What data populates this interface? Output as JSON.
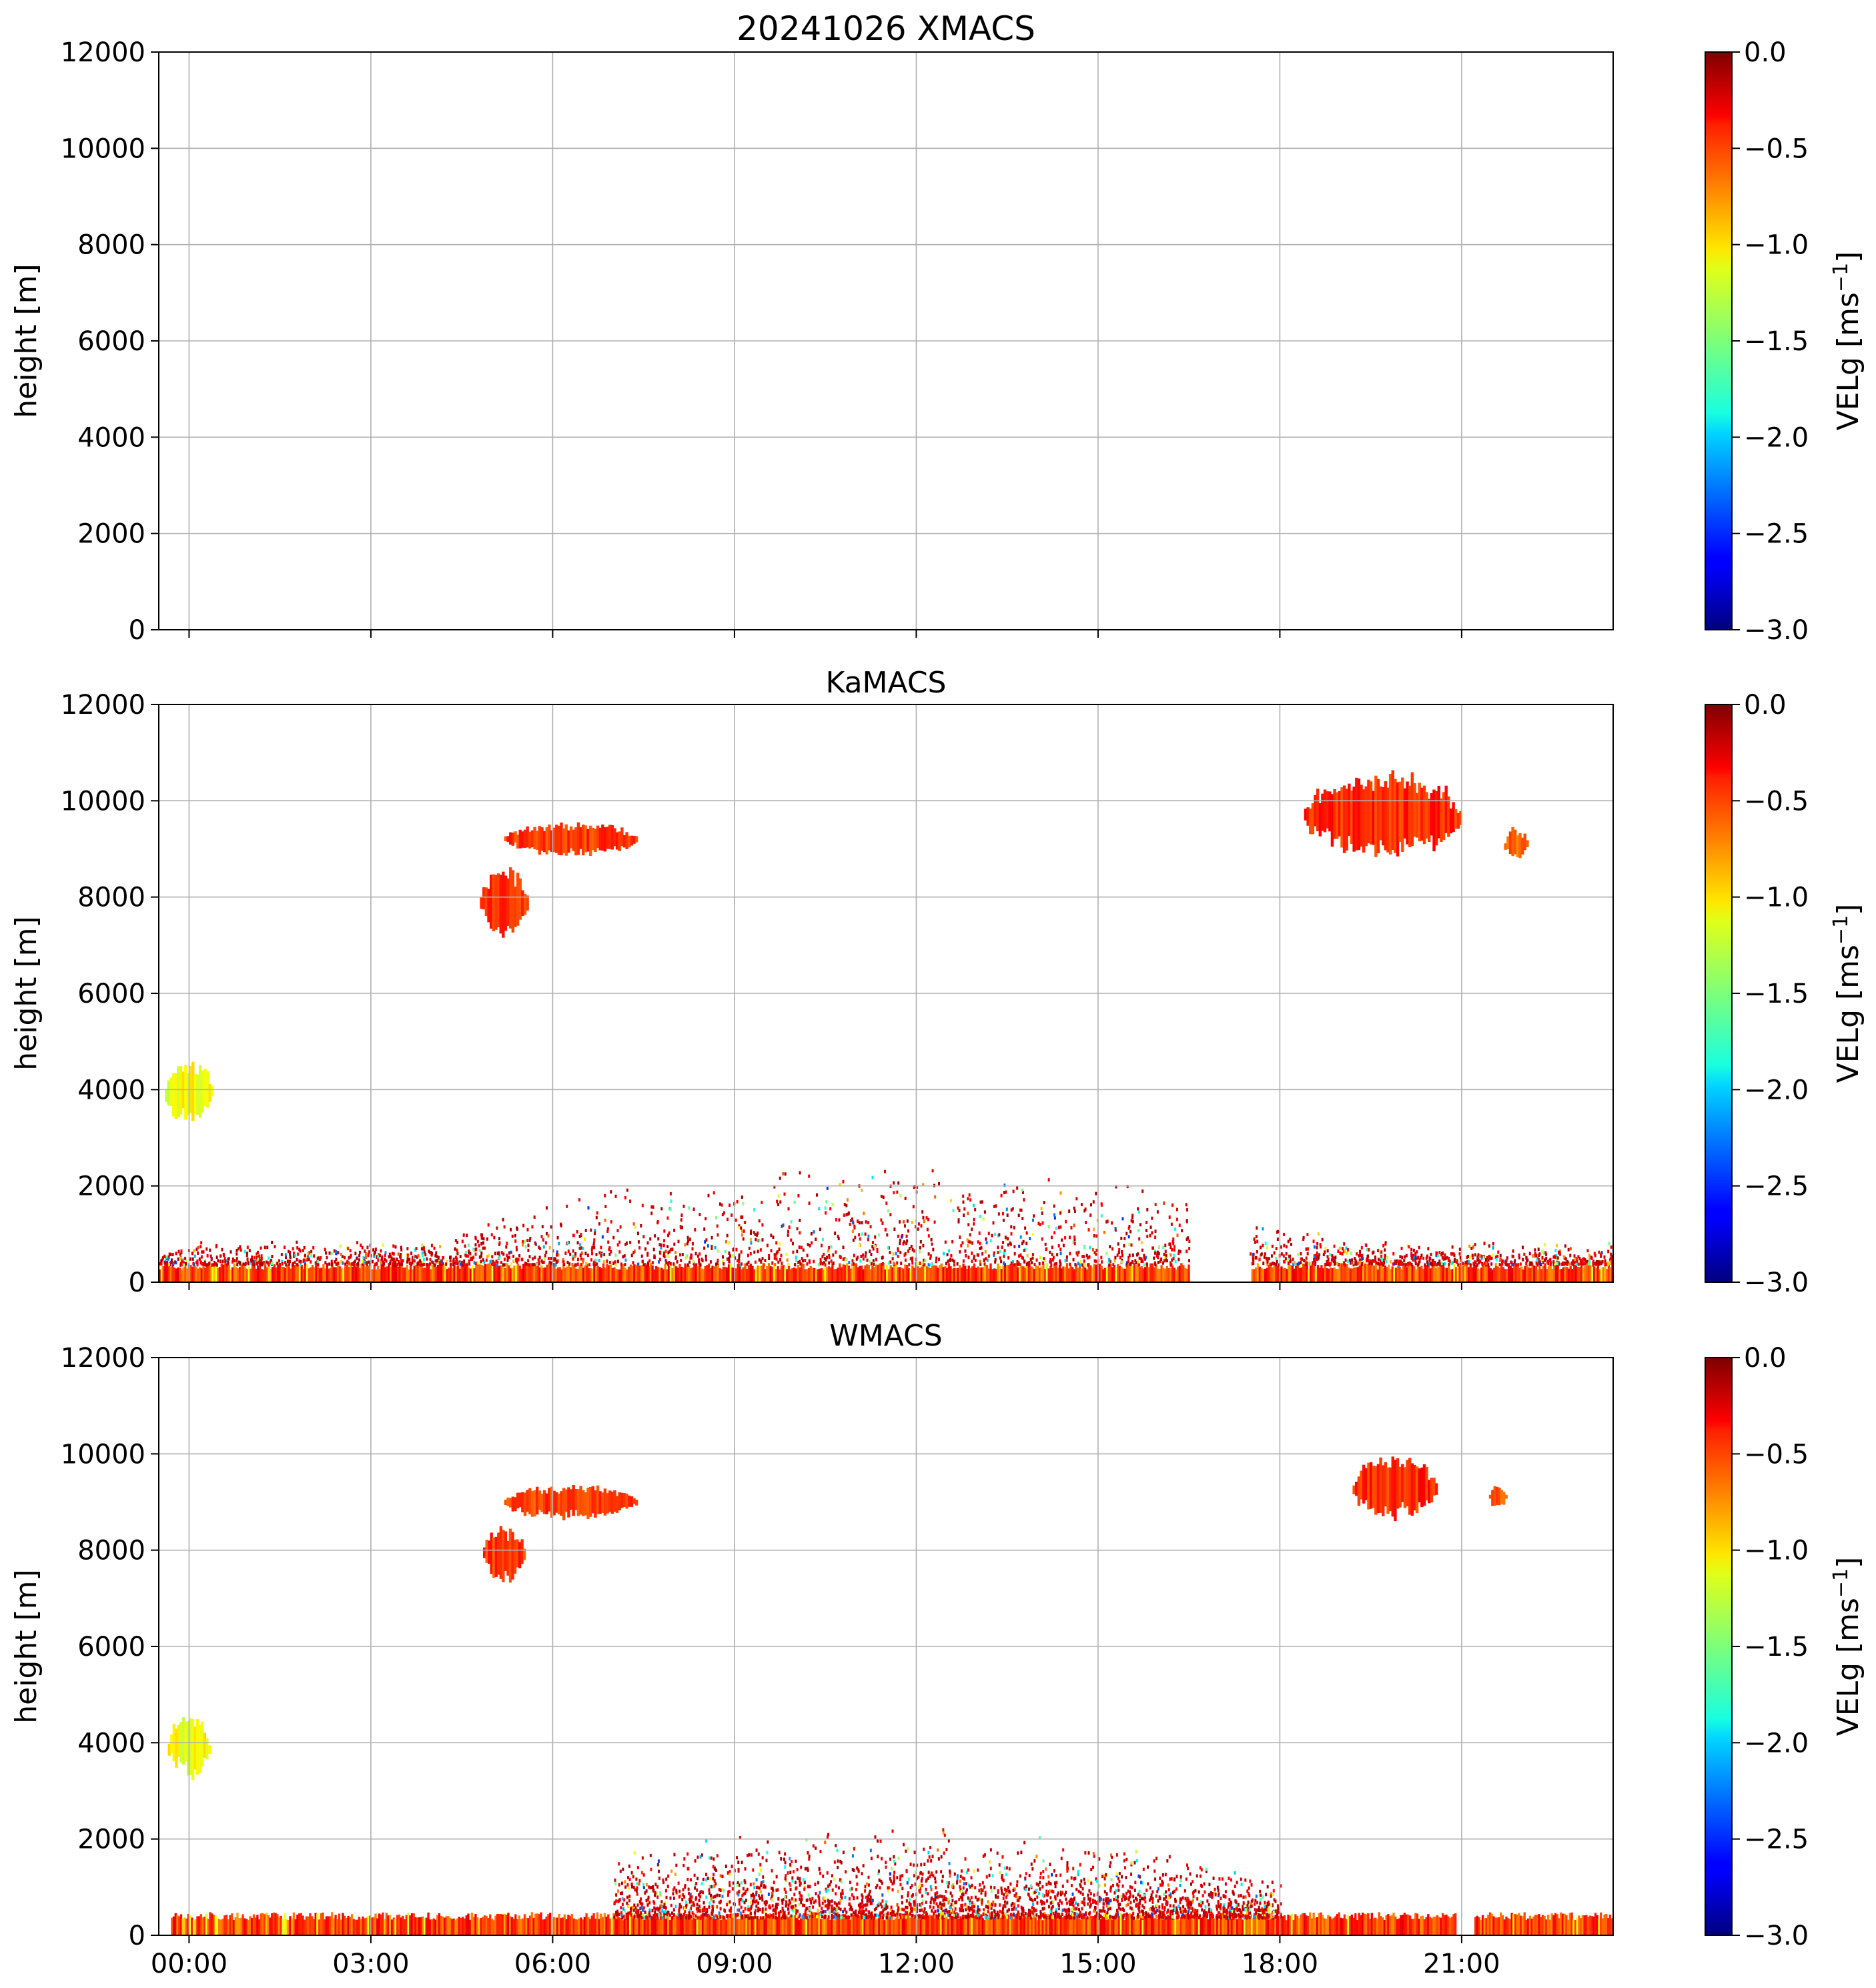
{
  "figure": {
    "title": "20241026 XMACS"
  },
  "chart_data": [
    {
      "type": "heatmap",
      "title": "20241026 XMACS",
      "ylabel": "height [m]",
      "xlabel": "",
      "xlim_hours": [
        -0.5,
        23.5
      ],
      "ylim": [
        0,
        12000
      ],
      "yticks": [
        0,
        2000,
        4000,
        6000,
        8000,
        10000,
        12000
      ],
      "xticks_hours": [
        0,
        3,
        6,
        9,
        12,
        15,
        18,
        21
      ],
      "xtick_labels": [
        "00:00",
        "03:00",
        "06:00",
        "09:00",
        "12:00",
        "15:00",
        "18:00",
        "21:00"
      ],
      "show_xtick_labels": false,
      "grid": true,
      "colorbar": {
        "label": "VELg [ms^-1]",
        "range": [
          -3.0,
          0.0
        ],
        "ticks": [
          "0.0",
          "−0.5",
          "−1.0",
          "−1.5",
          "−2.0",
          "−2.5",
          "−3.0"
        ],
        "colormap": "jet"
      },
      "features": []
    },
    {
      "type": "heatmap",
      "title": "KaMACS",
      "ylabel": "height [m]",
      "xlabel": "",
      "xlim_hours": [
        -0.5,
        23.5
      ],
      "ylim": [
        0,
        12000
      ],
      "yticks": [
        0,
        2000,
        4000,
        6000,
        8000,
        10000,
        12000
      ],
      "xticks_hours": [
        0,
        3,
        6,
        9,
        12,
        15,
        18,
        21
      ],
      "xtick_labels": [
        "00:00",
        "03:00",
        "06:00",
        "09:00",
        "12:00",
        "15:00",
        "18:00",
        "21:00"
      ],
      "show_xtick_labels": false,
      "grid": true,
      "colorbar": {
        "label": "VELg [ms^-1]",
        "range": [
          -3.0,
          0.0
        ],
        "ticks": [
          "0.0",
          "−0.5",
          "−1.0",
          "−1.5",
          "−2.0",
          "−2.5",
          "−3.0"
        ],
        "colormap": "jet"
      },
      "features": [
        {
          "kind": "surface_layer",
          "t_start": -0.5,
          "t_end": 23.5,
          "h_top": 350,
          "gap": [
            16.5,
            17.5
          ],
          "vel": -0.3
        },
        {
          "kind": "clutter",
          "t_start": -0.5,
          "t_end": 23.5,
          "h_max": 2200,
          "gap": [
            16.5,
            17.5
          ]
        },
        {
          "kind": "cloud",
          "t_center": 0.0,
          "t_width": 0.8,
          "h_center": 3950,
          "h_width": 1300,
          "vel": -1.0
        },
        {
          "kind": "cloud",
          "t_center": 5.2,
          "t_width": 0.8,
          "h_center": 7900,
          "h_width": 1400,
          "vel": -0.4
        },
        {
          "kind": "cloud",
          "t_center": 6.3,
          "t_width": 2.2,
          "h_center": 9200,
          "h_width": 700,
          "vel": -0.4
        },
        {
          "kind": "cloud",
          "t_center": 19.7,
          "t_width": 2.6,
          "h_center": 9700,
          "h_width": 1700,
          "vel": -0.35
        },
        {
          "kind": "cloud",
          "t_center": 21.9,
          "t_width": 0.4,
          "h_center": 9100,
          "h_width": 700,
          "vel": -0.5
        }
      ]
    },
    {
      "type": "heatmap",
      "title": "WMACS",
      "ylabel": "height [m]",
      "xlabel": "",
      "xlim_hours": [
        -0.5,
        23.5
      ],
      "ylim": [
        0,
        12000
      ],
      "yticks": [
        0,
        2000,
        4000,
        6000,
        8000,
        10000,
        12000
      ],
      "xticks_hours": [
        0,
        3,
        6,
        9,
        12,
        15,
        18,
        21
      ],
      "xtick_labels": [
        "00:00",
        "03:00",
        "06:00",
        "09:00",
        "12:00",
        "15:00",
        "18:00",
        "21:00"
      ],
      "show_xtick_labels": true,
      "grid": true,
      "colorbar": {
        "label": "VELg [ms^-1]",
        "range": [
          -3.0,
          0.0
        ],
        "ticks": [
          "0.0",
          "−0.5",
          "−1.0",
          "−1.5",
          "−2.0",
          "−2.5",
          "−3.0"
        ],
        "colormap": "jet"
      },
      "features": [
        {
          "kind": "surface_layer",
          "t_start": -0.3,
          "t_end": 23.5,
          "h_top": 420,
          "gap": [
            20.9,
            21.2
          ],
          "vel": -0.3
        },
        {
          "kind": "clutter",
          "t_start": 7.0,
          "t_end": 18.0,
          "h_max": 1900,
          "gap": []
        },
        {
          "kind": "cloud",
          "t_center": 0.0,
          "t_width": 0.7,
          "h_center": 3950,
          "h_width": 1300,
          "vel": -1.0
        },
        {
          "kind": "cloud",
          "t_center": 5.2,
          "t_width": 0.7,
          "h_center": 7900,
          "h_width": 1200,
          "vel": -0.4
        },
        {
          "kind": "cloud",
          "t_center": 6.3,
          "t_width": 2.2,
          "h_center": 9000,
          "h_width": 700,
          "vel": -0.4
        },
        {
          "kind": "cloud",
          "t_center": 19.9,
          "t_width": 1.4,
          "h_center": 9300,
          "h_width": 1300,
          "vel": -0.35
        },
        {
          "kind": "cloud",
          "t_center": 21.6,
          "t_width": 0.3,
          "h_center": 9100,
          "h_width": 500,
          "vel": -0.5
        }
      ]
    }
  ]
}
